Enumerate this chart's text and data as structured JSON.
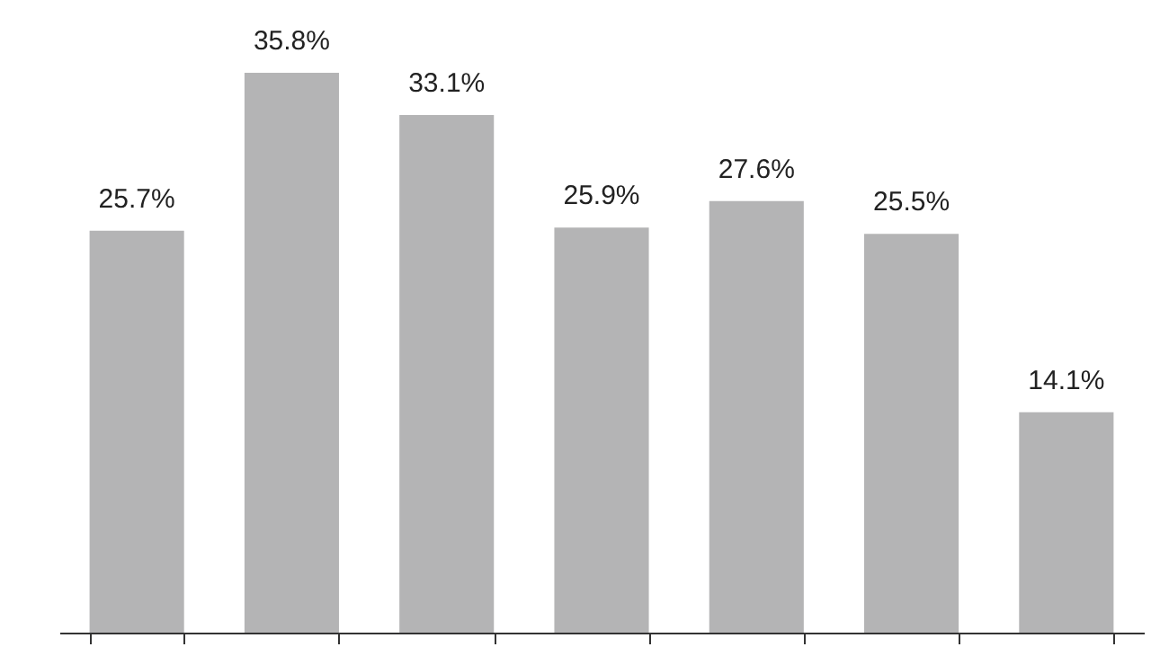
{
  "chart_data": {
    "type": "bar",
    "categories": [
      null,
      null,
      null,
      null,
      null,
      null,
      null
    ],
    "values": [
      25.7,
      35.8,
      33.1,
      25.9,
      27.6,
      25.5,
      14.1
    ],
    "value_labels": [
      "25.7%",
      "35.8%",
      "33.1%",
      "25.9%",
      "27.6%",
      "25.5%",
      "14.1%"
    ],
    "color": "#b4b4b5"
  }
}
